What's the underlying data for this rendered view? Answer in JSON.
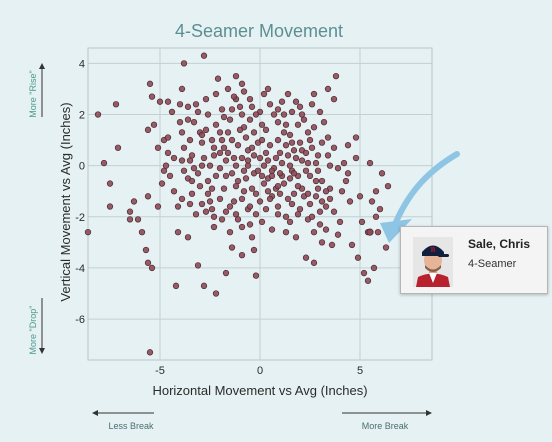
{
  "chart_data": {
    "type": "scatter",
    "title": "4-Seamer Movement",
    "xlabel": "Horizontal Movement vs Avg (Inches)",
    "ylabel": "Vertical Movement vs Avg (Inches)",
    "xlim": [
      -8.6,
      8.6
    ],
    "ylim": [
      -7.6,
      4.6
    ],
    "x_ticks": [
      "-5",
      "0",
      "5"
    ],
    "x_tick_values": [
      -5,
      0,
      5
    ],
    "y_ticks": [
      "4",
      "2",
      "0",
      "-2",
      "-4",
      "-6"
    ],
    "y_tick_values": [
      4,
      2,
      0,
      -2,
      -4,
      -6
    ],
    "grid": true,
    "axis_notes": {
      "top": "More \"Rise\"",
      "bottom": "More \"Drop\"",
      "left": "Less Break",
      "right": "More Break"
    },
    "marker_color": "#8d4a57",
    "highlight_color": "#8ec5e4",
    "points": [
      [
        -5.5,
        -7.3
      ],
      [
        -8.6,
        -2.6
      ],
      [
        -2.2,
        -5.0
      ],
      [
        -2.8,
        -4.7
      ],
      [
        -4.2,
        -4.7
      ],
      [
        -3.8,
        4.0
      ],
      [
        -2.8,
        4.3
      ],
      [
        -1.2,
        3.5
      ],
      [
        -0.9,
        3.2
      ],
      [
        3.8,
        3.5
      ],
      [
        -5.5,
        3.2
      ],
      [
        -7.2,
        2.4
      ],
      [
        -8.1,
        2.0
      ],
      [
        -7.1,
        0.7
      ],
      [
        -7.8,
        0.1
      ],
      [
        -7.5,
        -0.7
      ],
      [
        -7.5,
        -1.6
      ],
      [
        -6.5,
        -1.8
      ],
      [
        -6.3,
        -1.4
      ],
      [
        -5.6,
        -1.2
      ],
      [
        -6.5,
        -2.1
      ],
      [
        -6.1,
        -2.1
      ],
      [
        -5.9,
        -2.6
      ],
      [
        -5.7,
        -3.3
      ],
      [
        -5.6,
        -3.8
      ],
      [
        -5.4,
        -4.0
      ],
      [
        -5.1,
        -1.6
      ],
      [
        -4.8,
        -0.2
      ],
      [
        -4.6,
        0.5
      ],
      [
        -4.8,
        1.0
      ],
      [
        -5.3,
        1.6
      ],
      [
        -5.6,
        1.4
      ],
      [
        -5.0,
        2.5
      ],
      [
        -5.4,
        2.7
      ],
      [
        -4.1,
        -2.6
      ],
      [
        -3.6,
        -2.8
      ],
      [
        -3.1,
        -3.9
      ],
      [
        -1.7,
        -4.2
      ],
      [
        -1.4,
        -3.2
      ],
      [
        -0.9,
        -3.5
      ],
      [
        -0.2,
        -4.3
      ],
      [
        2.3,
        -3.6
      ],
      [
        2.7,
        -3.8
      ],
      [
        3.6,
        -3.1
      ],
      [
        4.6,
        -3.1
      ],
      [
        4.9,
        -3.6
      ],
      [
        5.2,
        -4.2
      ],
      [
        5.4,
        -4.5
      ],
      [
        5.7,
        -4.0
      ],
      [
        6.3,
        -3.2
      ],
      [
        4.5,
        -1.4
      ],
      [
        5.0,
        -1.2
      ],
      [
        5.6,
        -1.4
      ],
      [
        6.0,
        -1.7
      ],
      [
        5.8,
        -2.0
      ],
      [
        5.9,
        -2.6
      ],
      [
        5.4,
        -2.6
      ],
      [
        5.1,
        -2.2
      ],
      [
        5.8,
        -1.0
      ],
      [
        6.1,
        -0.3
      ],
      [
        6.4,
        -0.8
      ],
      [
        5.5,
        0.1
      ],
      [
        4.8,
        0.3
      ],
      [
        4.4,
        0.8
      ],
      [
        4.8,
        1.1
      ],
      [
        3.4,
        3.0
      ],
      [
        3.7,
        2.6
      ],
      [
        2.6,
        2.4
      ],
      [
        2.0,
        2.3
      ],
      [
        -1.2,
        2.6
      ],
      [
        -1.4,
        2.2
      ],
      [
        -0.5,
        1.8
      ],
      [
        -0.4,
        -2.8
      ],
      [
        0.1,
        -2.2
      ],
      [
        0.6,
        -1.2
      ],
      [
        1.3,
        -2.6
      ],
      [
        1.8,
        -2.8
      ],
      [
        2.4,
        -2.1
      ],
      [
        3.0,
        -2.3
      ],
      [
        3.3,
        -2.5
      ],
      [
        3.9,
        -2.7
      ],
      [
        3.3,
        -1.6
      ],
      [
        3.5,
        -0.9
      ],
      [
        3.1,
        -0.6
      ],
      [
        -3.2,
        -1.9
      ],
      [
        -3.4,
        -1.1
      ],
      [
        -2.3,
        -2.4
      ],
      [
        -2.0,
        -1.3
      ],
      [
        -2.5,
        -1.4
      ],
      [
        -1.7,
        -1.8
      ],
      [
        -1.1,
        -2.1
      ],
      [
        0.3,
        -1.7
      ],
      [
        1.6,
        -1.5
      ],
      [
        2.6,
        -2.0
      ],
      [
        1.1,
        -0.4
      ],
      [
        0.8,
        -0.9
      ],
      [
        -0.6,
        0.6
      ],
      [
        -1.7,
        0.2
      ],
      [
        -2.9,
        0.0
      ],
      [
        -3.4,
        0.4
      ],
      [
        -3.8,
        0.7
      ],
      [
        -2.9,
        0.9
      ],
      [
        -1.4,
        1.0
      ],
      [
        0.3,
        1.4
      ],
      [
        1.5,
        1.2
      ],
      [
        2.5,
        1.0
      ],
      [
        2.9,
        0.4
      ],
      [
        2.1,
        0.6
      ],
      [
        0.9,
        1.7
      ],
      [
        1.2,
        2.0
      ],
      [
        -2.2,
        1.6
      ],
      [
        -3.0,
        1.3
      ],
      [
        -3.9,
        1.3
      ],
      [
        -4.3,
        0.3
      ],
      [
        -2.2,
        2.8
      ],
      [
        -1.6,
        3.0
      ],
      [
        -3.6,
        2.3
      ],
      [
        -4.4,
        2.1
      ],
      [
        -4.0,
        1.7
      ],
      [
        -1.1,
        -0.6
      ],
      [
        -0.2,
        -1.1
      ],
      [
        0.4,
        0.2
      ],
      [
        1.6,
        -0.2
      ],
      [
        2.1,
        -0.9
      ],
      [
        2.8,
        -1.2
      ],
      [
        -2.6,
        -0.6
      ],
      [
        -3.6,
        -0.5
      ],
      [
        -1.8,
        0.7
      ],
      [
        -0.8,
        1.5
      ],
      [
        0.0,
        2.1
      ],
      [
        -2.4,
        1.0
      ],
      [
        -3.2,
        2.4
      ],
      [
        -3.0,
        -0.8
      ],
      [
        -0.9,
        0.3
      ],
      [
        -0.1,
        0.9
      ],
      [
        1.0,
        0.5
      ],
      [
        1.9,
        -0.4
      ],
      [
        0.4,
        -0.5
      ],
      [
        -1.8,
        -0.9
      ],
      [
        3.9,
        -0.1
      ],
      [
        3.7,
        0.7
      ],
      [
        3.2,
        1.7
      ],
      [
        3.0,
        2.1
      ],
      [
        -0.5,
        2.6
      ],
      [
        0.5,
        2.4
      ],
      [
        1.4,
        2.8
      ],
      [
        -2.0,
        -0.1
      ],
      [
        -1.3,
        -1.4
      ],
      [
        -0.6,
        -1.7
      ],
      [
        0.9,
        -1.6
      ],
      [
        1.7,
        -1.1
      ],
      [
        2.3,
        -0.2
      ],
      [
        -4.1,
        -1.6
      ],
      [
        -4.6,
        1.1
      ],
      [
        -5.1,
        0.7
      ],
      [
        -0.3,
        -0.3
      ],
      [
        -2.6,
        2.0
      ],
      [
        -1.5,
        1.8
      ],
      [
        0.7,
        -0.1
      ],
      [
        1.3,
        1.6
      ],
      [
        2.2,
        1.8
      ],
      [
        2.7,
        1.5
      ],
      [
        3.4,
        1.1
      ],
      [
        -0.8,
        -0.2
      ],
      [
        -2.3,
        0.4
      ],
      [
        -3.8,
        -0.2
      ],
      [
        -2.7,
        -1.8
      ],
      [
        -1.5,
        -2.6
      ],
      [
        -0.5,
        -2.3
      ],
      [
        0.6,
        -2.5
      ],
      [
        1.5,
        -2.2
      ],
      [
        2.0,
        -1.7
      ],
      [
        2.8,
        -0.6
      ],
      [
        3.7,
        -1.8
      ],
      [
        4.1,
        -1.0
      ],
      [
        4.4,
        -0.3
      ],
      [
        -4.9,
        -0.7
      ],
      [
        -4.3,
        -1.0
      ],
      [
        -2.1,
        3.4
      ],
      [
        -3.3,
        1.7
      ],
      [
        -1.0,
        2.3
      ],
      [
        0.1,
        1.0
      ],
      [
        0.9,
        1.0
      ],
      [
        1.8,
        0.3
      ],
      [
        2.4,
        0.1
      ],
      [
        3.5,
        0.0
      ],
      [
        -1.1,
        0.8
      ],
      [
        -2.7,
        1.4
      ],
      [
        -3.5,
        1.0
      ],
      [
        0.2,
        2.8
      ],
      [
        1.1,
        2.5
      ],
      [
        2.7,
        2.8
      ],
      [
        -2.0,
        0.5
      ],
      [
        -3.1,
        -0.3
      ],
      [
        -0.3,
        0.4
      ],
      [
        0.5,
        0.8
      ],
      [
        1.4,
        0.4
      ],
      [
        2.9,
        -0.2
      ],
      [
        3.3,
        -1.0
      ],
      [
        0.2,
        -0.7
      ],
      [
        -1.2,
        -0.8
      ],
      [
        -2.4,
        -0.9
      ],
      [
        -1.6,
        1.3
      ],
      [
        -0.7,
        1.1
      ],
      [
        1.6,
        0.9
      ],
      [
        2.3,
        0.5
      ],
      [
        0.1,
        1.6
      ],
      [
        -0.9,
        2.0
      ],
      [
        1.9,
        1.6
      ],
      [
        3.1,
        0.9
      ],
      [
        -3.1,
        2.1
      ],
      [
        -4.0,
        2.4
      ],
      [
        -4.5,
        -0.4
      ],
      [
        -3.9,
        -1.3
      ],
      [
        -2.9,
        -1.5
      ],
      [
        -1.9,
        -2.1
      ],
      [
        -0.9,
        -1.3
      ],
      [
        0.0,
        -1.4
      ],
      [
        1.0,
        -1.1
      ],
      [
        2.2,
        -1.2
      ],
      [
        2.5,
        -1.5
      ],
      [
        3.0,
        -1.8
      ],
      [
        -1.4,
        -0.3
      ],
      [
        -0.4,
        -0.9
      ],
      [
        0.6,
        -0.4
      ],
      [
        1.2,
        -0.7
      ],
      [
        2.0,
        0.9
      ],
      [
        -2.8,
        0.3
      ],
      [
        -1.7,
        -0.4
      ],
      [
        -0.6,
        0.0
      ],
      [
        0.3,
        0.5
      ],
      [
        1.1,
        0.1
      ],
      [
        1.7,
        0.6
      ],
      [
        2.6,
        0.7
      ],
      [
        -3.6,
        1.8
      ],
      [
        -1.9,
        2.2
      ],
      [
        -0.2,
        2.0
      ],
      [
        0.7,
        2.0
      ],
      [
        1.6,
        2.1
      ],
      [
        2.4,
        1.3
      ],
      [
        -2.5,
        0.0
      ],
      [
        -1.3,
        0.3
      ],
      [
        -0.1,
        -0.2
      ],
      [
        0.9,
        -0.8
      ],
      [
        1.9,
        -0.8
      ],
      [
        2.9,
        -0.9
      ],
      [
        -0.7,
        -0.5
      ],
      [
        0.4,
        -1.0
      ],
      [
        1.5,
        -0.5
      ],
      [
        -2.2,
        -0.4
      ],
      [
        -3.3,
        -0.1
      ],
      [
        -4.7,
        0.0
      ],
      [
        -1.9,
        1.0
      ],
      [
        -0.3,
        1.3
      ],
      [
        1.2,
        1.3
      ],
      [
        2.8,
        0.1
      ],
      [
        3.4,
        0.4
      ],
      [
        -2.6,
        -1.1
      ],
      [
        -1.5,
        -1.6
      ],
      [
        -0.5,
        -1.6
      ],
      [
        0.5,
        -1.3
      ],
      [
        1.4,
        -1.3
      ],
      [
        2.4,
        -1.1
      ],
      [
        3.5,
        -1.3
      ],
      [
        -1.0,
        1.4
      ],
      [
        0.0,
        0.3
      ],
      [
        0.8,
        0.3
      ],
      [
        1.5,
        0.0
      ],
      [
        -2.0,
        1.3
      ],
      [
        -2.9,
        1.2
      ],
      [
        -3.9,
        0.2
      ],
      [
        -0.8,
        2.9
      ],
      [
        0.4,
        3.0
      ],
      [
        1.8,
        2.5
      ],
      [
        -4.6,
        2.5
      ],
      [
        -3.4,
        -0.6
      ],
      [
        -2.4,
        -1.7
      ],
      [
        -1.2,
        -1.9
      ],
      [
        -0.2,
        -1.9
      ],
      [
        0.9,
        -1.9
      ],
      [
        1.9,
        -1.9
      ],
      [
        3.1,
        -1.4
      ],
      [
        0.2,
        0.0
      ],
      [
        -0.4,
        0.7
      ],
      [
        1.3,
        0.8
      ],
      [
        2.1,
        0.2
      ],
      [
        -1.2,
        0.0
      ],
      [
        -2.3,
        0.7
      ],
      [
        -3.5,
        0.2
      ],
      [
        -0.8,
        -1.0
      ],
      [
        0.6,
        -0.2
      ],
      [
        1.7,
        -0.3
      ],
      [
        2.5,
        -0.4
      ],
      [
        -1.6,
        0.5
      ],
      [
        -0.6,
        0.2
      ],
      [
        0.1,
        -0.4
      ],
      [
        1.0,
        -0.3
      ],
      [
        -1.8,
        1.9
      ],
      [
        -0.4,
        2.3
      ],
      [
        0.9,
        2.2
      ],
      [
        2.1,
        2.0
      ],
      [
        -2.7,
        2.6
      ],
      [
        -3.9,
        3.0
      ],
      [
        -1.3,
        2.7
      ],
      [
        1.3,
        -2.0
      ],
      [
        2.7,
        -2.6
      ],
      [
        -0.9,
        -2.4
      ],
      [
        -2.3,
        -2.0
      ],
      [
        -3.5,
        -1.5
      ],
      [
        4.0,
        -2.2
      ],
      [
        3.1,
        -3.0
      ],
      [
        -0.3,
        -3.3
      ],
      [
        4.2,
        0.1
      ],
      [
        4.3,
        -0.6
      ]
    ],
    "highlight_point": [
      5.5,
      -2.6
    ],
    "annotation": {
      "player": "Sale, Chris",
      "pitch_type": "4-Seamer"
    }
  }
}
